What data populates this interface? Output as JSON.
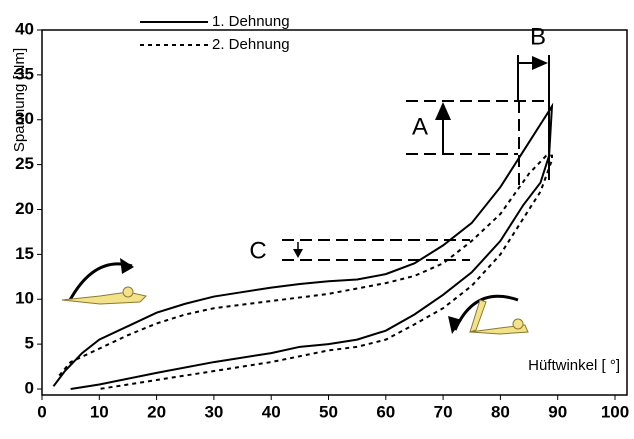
{
  "chart_data": {
    "type": "line",
    "y_label": "Spannung [Nm]",
    "x_label": "Hüftwinkel [ °]",
    "annotations": [
      "A",
      "B",
      "C"
    ],
    "xlim": [
      0,
      100
    ],
    "xticks": [
      0,
      10,
      20,
      30,
      40,
      50,
      60,
      70,
      80,
      90,
      100
    ],
    "ylim": [
      0,
      40
    ],
    "yticks": [
      0,
      5,
      10,
      15,
      20,
      25,
      30,
      35,
      40
    ],
    "grid": false,
    "series": [
      {
        "name": "1. Dehnung",
        "color": "#000000",
        "dash": "solid",
        "x": [
          2,
          4,
          7,
          10,
          15,
          20,
          25,
          30,
          35,
          40,
          45,
          50,
          55,
          60,
          65,
          70,
          75,
          80,
          84,
          87,
          89,
          88.5,
          87,
          84,
          80,
          75,
          70,
          65,
          60,
          55,
          50,
          45,
          40,
          30,
          20,
          10,
          5
        ],
        "values": [
          0.3,
          2,
          4,
          5.5,
          7,
          8.5,
          9.5,
          10.3,
          10.8,
          11.3,
          11.7,
          12,
          12.2,
          12.8,
          14,
          16,
          18.5,
          22.5,
          26.5,
          29.5,
          31.5,
          26,
          23,
          20.5,
          16.5,
          13,
          10.5,
          8.3,
          6.5,
          5.5,
          5,
          4.7,
          4,
          3,
          1.8,
          0.5,
          0
        ]
      },
      {
        "name": "2. Dehnung",
        "color": "#000000",
        "dash": "dotted",
        "x": [
          3,
          5,
          10,
          15,
          20,
          25,
          30,
          40,
          50,
          60,
          65,
          70,
          75,
          80,
          85,
          88,
          89,
          89,
          87,
          84,
          80,
          75,
          70,
          65,
          60,
          55,
          50,
          40,
          30,
          20,
          10
        ],
        "values": [
          1.5,
          3,
          4.5,
          6,
          7.3,
          8.3,
          9,
          9.8,
          10.6,
          11.8,
          12.6,
          14,
          16.5,
          19.5,
          24,
          26,
          26,
          25.5,
          22,
          19,
          15,
          11.5,
          9,
          7.2,
          5.5,
          4.7,
          4.3,
          3,
          2,
          1,
          0
        ]
      }
    ],
    "legend": "top-left"
  }
}
